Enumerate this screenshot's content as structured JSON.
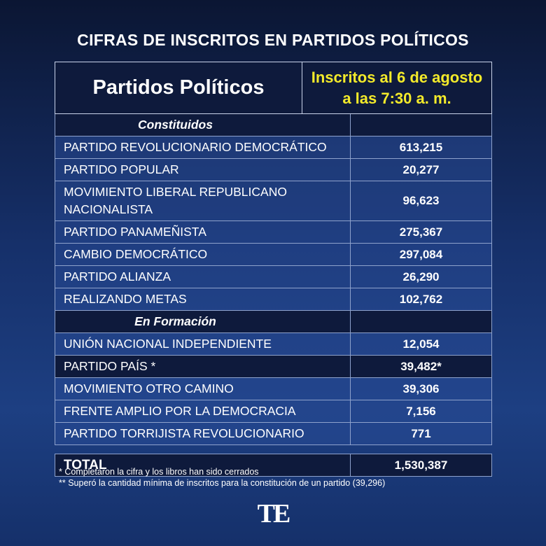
{
  "title": "CIFRAS DE INSCRITOS EN PARTIDOS POLÍTICOS",
  "header": {
    "party": "Partidos Políticos",
    "count": [
      "Inscritos al 6 de agosto",
      "a las 7:30 a. m."
    ]
  },
  "sections": [
    {
      "label": "Constituidos",
      "rows": [
        [
          "PARTIDO REVOLUCIONARIO DEMOCRÁTICO",
          "613,215"
        ],
        [
          "PARTIDO POPULAR",
          "20,277"
        ],
        [
          "MOVIMIENTO LIBERAL REPUBLICANO NACIONALISTA",
          "96,623"
        ],
        [
          "PARTIDO PANAMEÑISTA",
          "275,367"
        ],
        [
          "CAMBIO DEMOCRÁTICO",
          "297,084"
        ],
        [
          "PARTIDO ALIANZA",
          "26,290"
        ],
        [
          "REALIZANDO METAS",
          "102,762"
        ]
      ]
    },
    {
      "label": "En Formación",
      "rows": [
        [
          "UNIÓN NACIONAL INDEPENDIENTE",
          "12,054"
        ],
        [
          "PARTIDO PAÍS *",
          "39,482*"
        ],
        [
          "MOVIMIENTO OTRO CAMINO",
          "39,306"
        ],
        [
          "FRENTE AMPLIO POR LA DEMOCRACIA",
          "7,156"
        ],
        [
          "PARTIDO TORRIJISTA REVOLUCIONARIO",
          "771"
        ]
      ]
    }
  ],
  "total": {
    "label": "TOTAL",
    "value": "1,530,387"
  },
  "footnotes": [
    "* Completaron la cifra y los libros han sido cerrados",
    "** Superó la cantidad mínima de inscritos para la constitución de un partido (39,296)"
  ],
  "logo": "TE"
}
